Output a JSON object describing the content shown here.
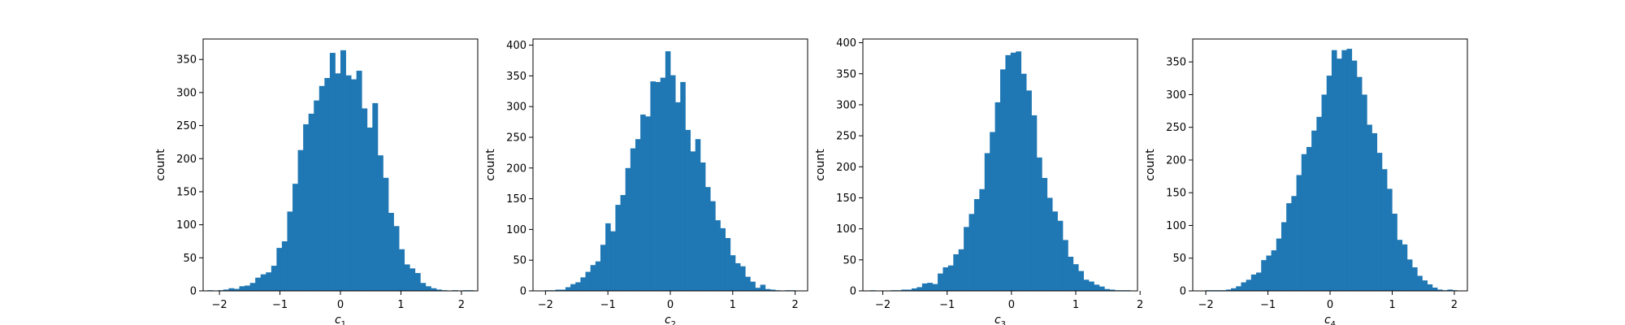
{
  "colors": {
    "bar": "#1f77b4",
    "axes": "#000000",
    "background": "#ffffff"
  },
  "chart_data": [
    {
      "type": "bar",
      "xlabel_base": "c",
      "xlabel_sub": "1",
      "ylabel": "count",
      "xlim": [
        -2.27,
        2.27
      ],
      "ylim": [
        0,
        381
      ],
      "xticks": [
        -2,
        -1,
        0,
        1,
        2
      ],
      "yticks": [
        0,
        50,
        100,
        150,
        200,
        250,
        300,
        350
      ],
      "bin_start": -2.2,
      "bin_width": 0.088,
      "values": [
        1,
        0,
        1,
        2,
        4,
        3,
        7,
        8,
        12,
        20,
        25,
        28,
        38,
        65,
        75,
        120,
        162,
        213,
        252,
        268,
        288,
        310,
        322,
        360,
        329,
        364,
        326,
        320,
        333,
        276,
        247,
        284,
        205,
        171,
        118,
        98,
        63,
        40,
        34,
        27,
        12,
        7,
        4,
        2,
        1,
        0,
        1,
        0,
        1,
        1
      ]
    },
    {
      "type": "bar",
      "xlabel_base": "c",
      "xlabel_sub": "2",
      "ylabel": "count",
      "xlim": [
        -2.2,
        2.2
      ],
      "ylim": [
        0,
        410
      ],
      "xticks": [
        -2,
        -1,
        0,
        1,
        2
      ],
      "yticks": [
        0,
        50,
        100,
        150,
        200,
        250,
        300,
        350,
        400
      ],
      "bin_start": -2.0,
      "bin_width": 0.08,
      "values": [
        1,
        1,
        2,
        2,
        6,
        11,
        14,
        22,
        31,
        42,
        48,
        75,
        110,
        97,
        140,
        156,
        200,
        232,
        247,
        287,
        284,
        341,
        340,
        347,
        390,
        351,
        307,
        340,
        262,
        227,
        247,
        209,
        169,
        146,
        115,
        102,
        86,
        58,
        45,
        40,
        23,
        15,
        5,
        10,
        3,
        2,
        1,
        0,
        1,
        1
      ]
    },
    {
      "type": "bar",
      "xlabel_base": "c",
      "xlabel_sub": "3",
      "ylabel": "count",
      "xlim": [
        -2.31,
        1.96
      ],
      "ylim": [
        0,
        406
      ],
      "xticks": [
        -2,
        -1,
        0,
        1,
        2
      ],
      "yticks": [
        0,
        50,
        100,
        150,
        200,
        250,
        300,
        350,
        400
      ],
      "bin_start": -2.2,
      "bin_width": 0.081,
      "values": [
        1,
        0,
        0,
        0,
        1,
        1,
        2,
        2,
        4,
        6,
        12,
        13,
        11,
        28,
        38,
        41,
        59,
        67,
        103,
        124,
        148,
        164,
        222,
        256,
        304,
        357,
        380,
        384,
        386,
        350,
        323,
        283,
        215,
        182,
        150,
        128,
        113,
        82,
        55,
        43,
        32,
        18,
        15,
        10,
        7,
        3,
        2,
        1,
        1,
        1
      ]
    },
    {
      "type": "bar",
      "xlabel_base": "c",
      "xlabel_sub": "4",
      "ylabel": "count",
      "xlim": [
        -2.21,
        2.21
      ],
      "ylim": [
        0,
        385
      ],
      "xticks": [
        -2,
        -1,
        0,
        1,
        2
      ],
      "yticks": [
        0,
        50,
        100,
        150,
        200,
        250,
        300,
        350
      ],
      "bin_start": -2.0,
      "bin_width": 0.081,
      "values": [
        1,
        1,
        1,
        1,
        2,
        4,
        7,
        13,
        17,
        25,
        28,
        47,
        54,
        62,
        80,
        105,
        134,
        145,
        177,
        209,
        220,
        245,
        266,
        300,
        329,
        368,
        355,
        368,
        370,
        352,
        327,
        300,
        254,
        241,
        211,
        186,
        156,
        118,
        78,
        71,
        48,
        36,
        23,
        16,
        10,
        5,
        2,
        1,
        2,
        1
      ]
    }
  ]
}
